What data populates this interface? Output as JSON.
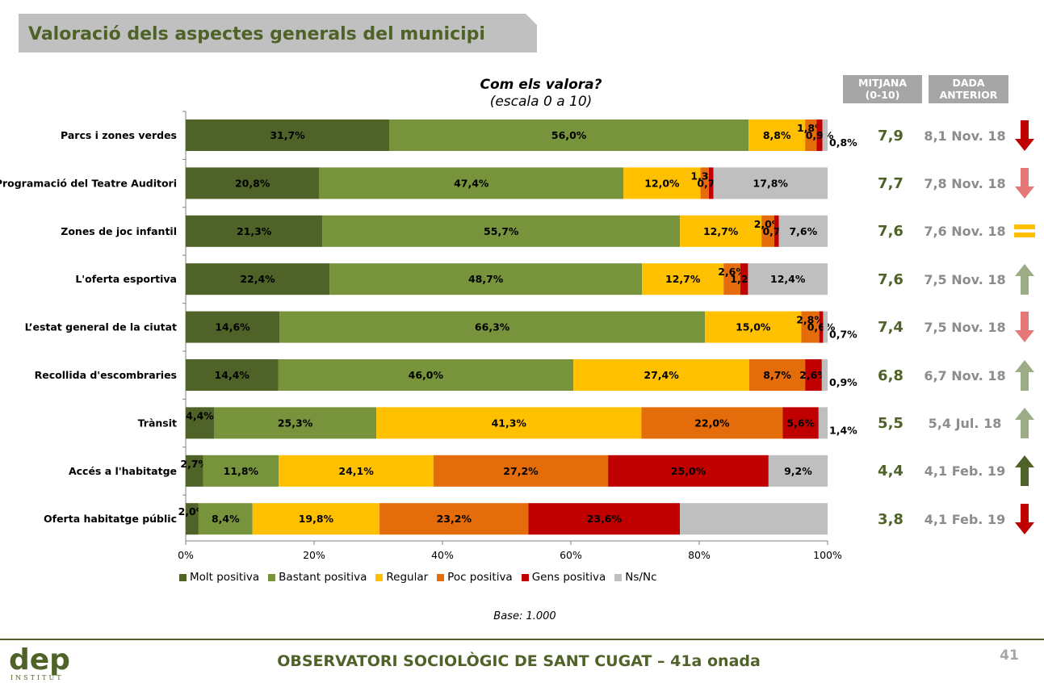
{
  "page_title": "Valoració dels aspectes generals del municipi",
  "chart_title": "Com els valora?",
  "chart_subtitle": "(escala 0 a 10)",
  "column_headers": {
    "mean": [
      "MITJANA",
      "(0-10)"
    ],
    "previous": [
      "DADA",
      "ANTERIOR"
    ]
  },
  "base_note": "Base: 1.000",
  "footer_text": "OBSERVATORI SOCIOLÒGIC DE SANT CUGAT – 41a onada",
  "page_number": "41",
  "logo": {
    "main": "dep",
    "sub": "INSTITUT"
  },
  "colors": {
    "molt_positiva": "#4f6228",
    "bastant_positiva": "#77933c",
    "regular": "#ffc000",
    "poc_positiva": "#e46c0a",
    "gens_positiva": "#c00000",
    "nsnc": "#bfbfbf",
    "arrow_down_strong": "#c00000",
    "arrow_down_light": "#e6787a",
    "arrow_up_light": "#9bac86",
    "arrow_up_strong": "#4f6228",
    "equal": "#ffc000"
  },
  "chart_data": {
    "type": "bar",
    "orientation": "horizontal",
    "stacked": true,
    "xlim": [
      0,
      100
    ],
    "x_ticks": [
      "0%",
      "20%",
      "40%",
      "60%",
      "80%",
      "100%"
    ],
    "categories": [
      "Parcs i zones verdes",
      "Programació del Teatre Auditori",
      "Zones de joc infantil",
      "L'oferta esportiva",
      "L’estat general de la ciutat",
      "Recollida d'escombraries",
      "Trànsit",
      "Accés a l'habitatge",
      "Oferta habitatge públic"
    ],
    "series": [
      {
        "name": "Molt positiva",
        "color_key": "molt_positiva",
        "label_color": "#000000",
        "values": [
          31.7,
          20.8,
          21.3,
          22.4,
          14.6,
          14.4,
          4.4,
          2.7,
          2.0
        ],
        "labels": [
          "31,7%",
          "20,8%",
          "21,3%",
          "22,4%",
          "14,6%",
          "14,4%",
          "4,4%",
          "2,7%",
          "2,0%"
        ]
      },
      {
        "name": "Bastant positiva",
        "color_key": "bastant_positiva",
        "label_color": "#000000",
        "values": [
          56.0,
          47.4,
          55.7,
          48.7,
          66.3,
          46.0,
          25.3,
          11.8,
          8.4
        ],
        "labels": [
          "56,0%",
          "47,4%",
          "55,7%",
          "48,7%",
          "66,3%",
          "46,0%",
          "25,3%",
          "11,8%",
          "8,4%"
        ]
      },
      {
        "name": "Regular",
        "color_key": "regular",
        "label_color": "#000000",
        "values": [
          8.8,
          12.0,
          12.7,
          12.7,
          15.0,
          27.4,
          41.3,
          24.1,
          19.8
        ],
        "labels": [
          "8,8%",
          "12,0%",
          "12,7%",
          "12,7%",
          "15,0%",
          "27,4%",
          "41,3%",
          "24,1%",
          "19,8%"
        ]
      },
      {
        "name": "Poc positiva",
        "color_key": "poc_positiva",
        "label_color": "#000000",
        "values": [
          1.8,
          1.3,
          2.0,
          2.6,
          2.8,
          8.7,
          22.0,
          27.2,
          23.2
        ],
        "labels": [
          "1,8%",
          "1,3%",
          "2,0%",
          "2,6%",
          "2,8%",
          "8,7%",
          "22,0%",
          "27,2%",
          "23,2%"
        ]
      },
      {
        "name": "Gens positiva",
        "color_key": "gens_positiva",
        "label_color": "#000000",
        "values": [
          0.9,
          0.7,
          0.7,
          1.2,
          0.6,
          2.6,
          5.6,
          25.0,
          23.6
        ],
        "labels": [
          "0,9%",
          "0,7%",
          "0,7%",
          "1,2%",
          "0,6%",
          "2,6%",
          "5,6%",
          "25,0%",
          "23,6%"
        ]
      },
      {
        "name": "Ns/Nc",
        "color_key": "nsnc",
        "label_color": "#000000",
        "values": [
          0.8,
          17.8,
          7.6,
          12.4,
          0.7,
          0.9,
          1.4,
          9.2,
          23.0
        ],
        "labels": [
          "0,8%",
          "17,8%",
          "7,6%",
          "12,4%",
          "0,7%",
          "0,9%",
          "1,4%",
          "9,2%",
          ""
        ]
      }
    ]
  },
  "rows_meta": [
    {
      "mean": "7,9",
      "previous": "8,1 Nov. 18",
      "trend": "down-strong"
    },
    {
      "mean": "7,7",
      "previous": "7,8 Nov. 18",
      "trend": "down-light"
    },
    {
      "mean": "7,6",
      "previous": "7,6 Nov. 18",
      "trend": "equal"
    },
    {
      "mean": "7,6",
      "previous": "7,5 Nov. 18",
      "trend": "up-light"
    },
    {
      "mean": "7,4",
      "previous": "7,5 Nov. 18",
      "trend": "down-light"
    },
    {
      "mean": "6,8",
      "previous": "6,7 Nov. 18",
      "trend": "up-light"
    },
    {
      "mean": "5,5",
      "previous": "5,4 Jul. 18",
      "trend": "up-light"
    },
    {
      "mean": "4,4",
      "previous": "4,1 Feb. 19",
      "trend": "up-strong"
    },
    {
      "mean": "3,8",
      "previous": "4,1 Feb. 19",
      "trend": "down-strong"
    }
  ]
}
